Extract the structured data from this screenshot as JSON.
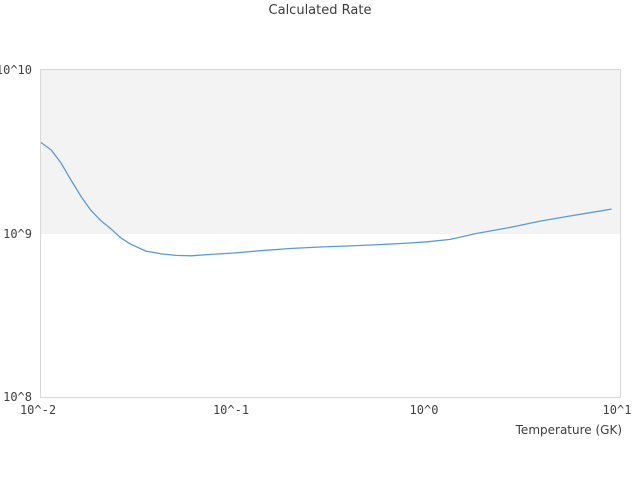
{
  "chart_data": {
    "type": "line",
    "title": "Calculated Rate",
    "xlabel": "Temperature (GK)",
    "ylabel": "",
    "x_scale": "log10",
    "y_scale": "log10",
    "x_range_log10": [
      -2,
      1
    ],
    "y_range_log10": [
      8,
      10
    ],
    "grid": "off",
    "legend": "none",
    "x_ticks": [
      {
        "value": 0.01,
        "label": "10^-2"
      },
      {
        "value": 0.1,
        "label": "10^-1"
      },
      {
        "value": 1,
        "label": "10^0"
      },
      {
        "value": 10,
        "label": "10^1"
      }
    ],
    "y_ticks": [
      {
        "value": 10000000000.0,
        "label": "10^10"
      },
      {
        "value": 1000000000.0,
        "label": "10^9"
      },
      {
        "value": 100000000.0,
        "label": "10^8"
      }
    ],
    "background_bands": [
      {
        "from": 1000000000.0,
        "to": 10000000000.0,
        "color": "#f3f3f3"
      },
      {
        "from": 100000000.0,
        "to": 1000000000.0,
        "color": "#ffffff"
      }
    ],
    "series": [
      {
        "name": "calculated rate",
        "color": "#5b9bd5",
        "points": [
          [
            0.01,
            3600000000.0
          ],
          [
            0.0113,
            3240000000.0
          ],
          [
            0.0127,
            2700000000.0
          ],
          [
            0.0143,
            2120000000.0
          ],
          [
            0.0161,
            1690000000.0
          ],
          [
            0.0181,
            1390000000.0
          ],
          [
            0.0204,
            1200000000.0
          ],
          [
            0.023,
            1070000000.0
          ],
          [
            0.0259,
            940000000.0
          ],
          [
            0.0292,
            860000000.0
          ],
          [
            0.035,
            780000000.0
          ],
          [
            0.042,
            750000000.0
          ],
          [
            0.05,
            735000000.0
          ],
          [
            0.06,
            730000000.0
          ],
          [
            0.076,
            745000000.0
          ],
          [
            0.1,
            760000000.0
          ],
          [
            0.137,
            785000000.0
          ],
          [
            0.196,
            810000000.0
          ],
          [
            0.279,
            827000000.0
          ],
          [
            0.4,
            840000000.0
          ],
          [
            0.571,
            855000000.0
          ],
          [
            0.815,
            875000000.0
          ],
          [
            1.0,
            890000000.0
          ],
          [
            1.32,
            920000000.0
          ],
          [
            1.8,
            1000000000.0
          ],
          [
            2.7,
            1090000000.0
          ],
          [
            3.86,
            1190000000.0
          ],
          [
            5.5,
            1280000000.0
          ],
          [
            7.0,
            1340000000.0
          ],
          [
            9.0,
            1410000000.0
          ]
        ]
      }
    ]
  },
  "colors": {
    "plot_border": "#d8d8d8",
    "band_fill": "#f3f3f3",
    "band_edge": "#e4e4e4",
    "line": "#5b9bd5",
    "title_text": "#3d3d3d",
    "tick_text": "#404040"
  }
}
